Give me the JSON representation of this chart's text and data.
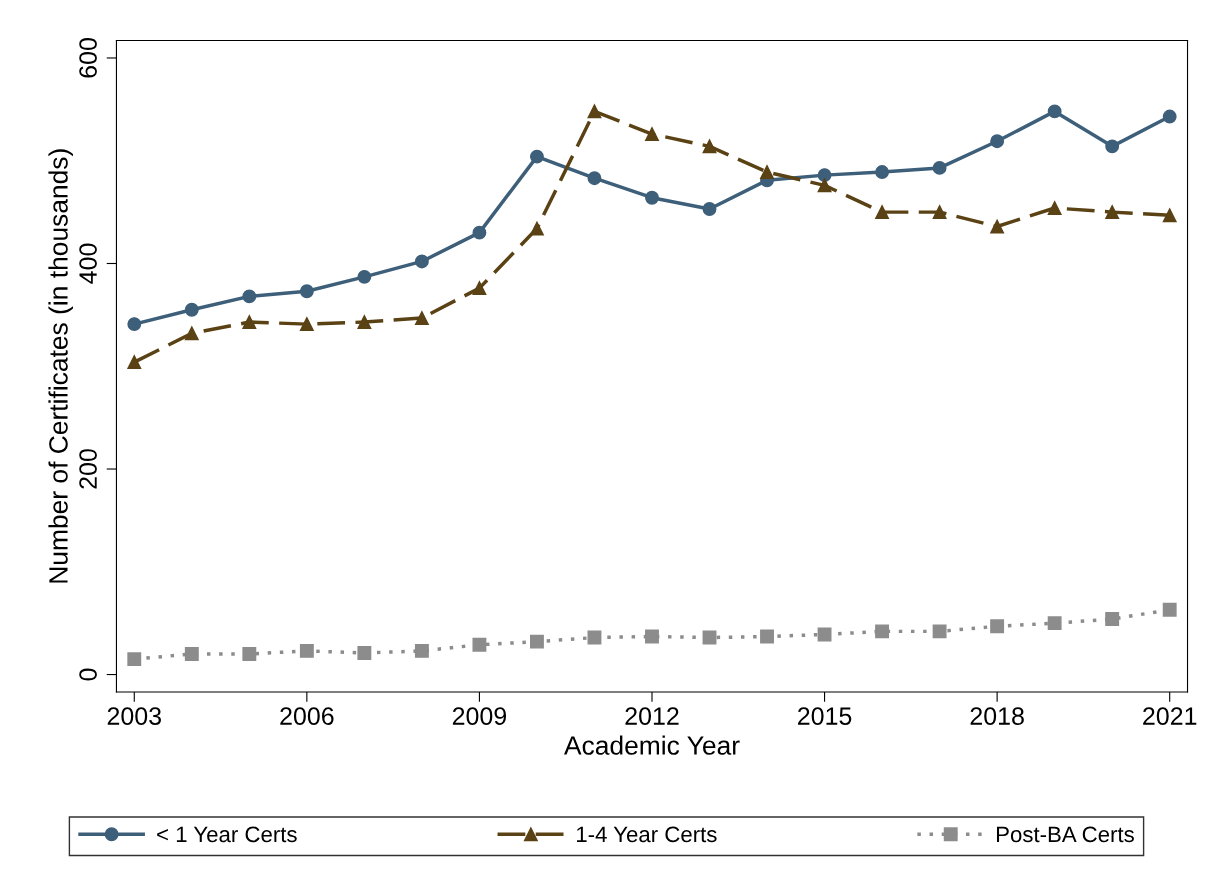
{
  "chart_data": {
    "type": "line",
    "xlabel": "Academic Year",
    "ylabel": "Number of Certificates (in thousands)",
    "x": [
      2003,
      2004,
      2005,
      2006,
      2007,
      2008,
      2009,
      2010,
      2011,
      2012,
      2013,
      2014,
      2015,
      2016,
      2017,
      2018,
      2019,
      2020,
      2021
    ],
    "series": [
      {
        "name": "< 1 Year Certs",
        "color": "#3e5f7a",
        "marker": "circle",
        "line_style": "solid",
        "values": [
          341,
          355,
          368,
          373,
          387,
          402,
          430,
          504,
          483,
          464,
          453,
          481,
          486,
          489,
          493,
          519,
          548,
          514,
          543
        ]
      },
      {
        "name": "1-4 Year Certs",
        "color": "#5a4214",
        "marker": "triangle",
        "line_style": "dashed",
        "values": [
          304,
          332,
          343,
          341,
          343,
          347,
          376,
          434,
          548,
          526,
          514,
          489,
          476,
          450,
          450,
          436,
          454,
          450,
          447
        ]
      },
      {
        "name": "Post-BA Certs",
        "color": "#8c8c8c",
        "marker": "square",
        "line_style": "dotted",
        "values": [
          15,
          20,
          20,
          23,
          21,
          23,
          29,
          32,
          36,
          37,
          36,
          37,
          39,
          42,
          42,
          47,
          50,
          54,
          63
        ]
      }
    ],
    "xlim": [
      2002.69,
      2021.31
    ],
    "xticks": [
      2003,
      2006,
      2009,
      2012,
      2015,
      2018,
      2021
    ],
    "ylim": [
      -17,
      617
    ],
    "yticks": [
      0,
      200,
      400,
      600
    ],
    "grid": false,
    "legend": "bottom"
  }
}
